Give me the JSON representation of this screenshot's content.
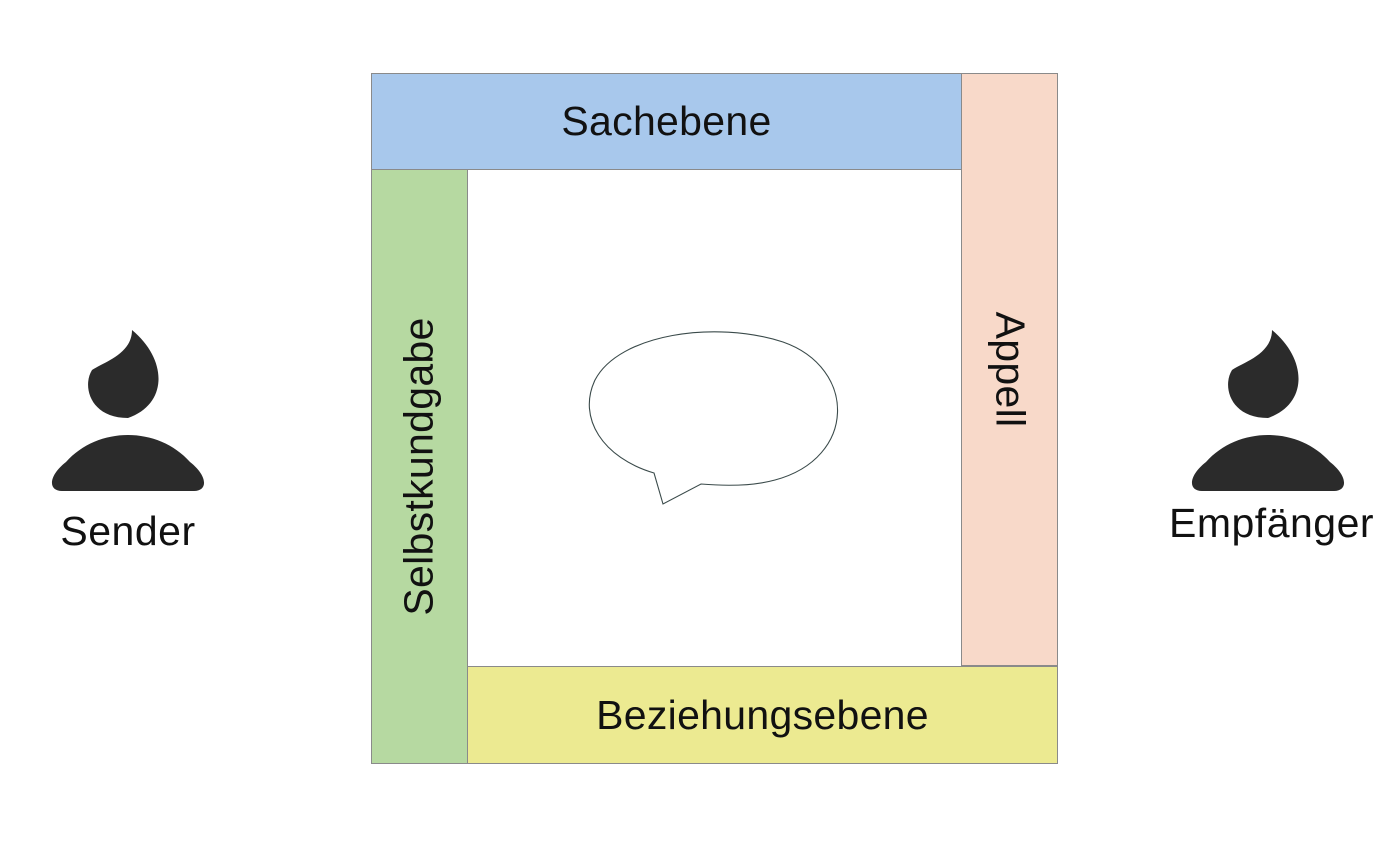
{
  "persons": {
    "sender": {
      "label": "Sender"
    },
    "receiver": {
      "label": "Empfänger"
    }
  },
  "square": {
    "top": {
      "label": "Sachebene",
      "color": "#a8c8ec"
    },
    "right": {
      "label": "Appell",
      "color": "#f8d9c9"
    },
    "left": {
      "label": "Selbstkundgabe",
      "color": "#b6d9a1"
    },
    "bottom": {
      "label": "Beziehungsebene",
      "color": "#ecea91"
    }
  },
  "icons": {
    "person": "person-icon",
    "message": "speech-bubble-icon"
  },
  "colors": {
    "person_fill": "#2b2b2b",
    "border": "#8a8a8a"
  }
}
